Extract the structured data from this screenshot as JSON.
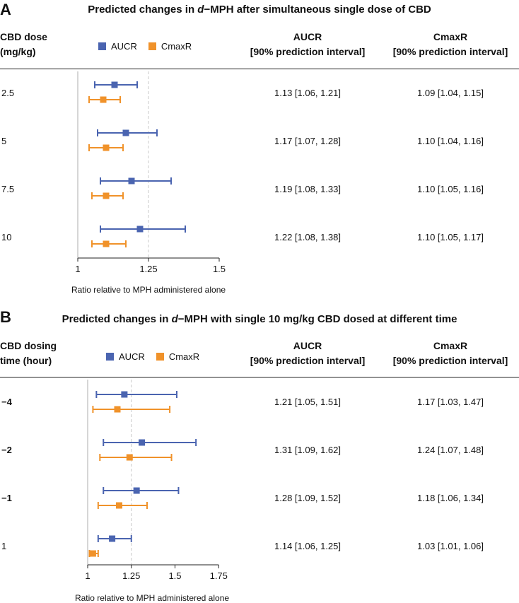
{
  "panels": [
    {
      "label": "A",
      "title_pre": "Predicted changes in ",
      "title_italic": "d",
      "title_post": "−MPH after simultaneous single dose of CBD",
      "row_header": "CBD dose\n(mg/kg)",
      "col1_header": "AUCR\n[90% prediction interval]",
      "col2_header": "CmaxR\n[90% prediction interval]",
      "rows": [
        {
          "label": "2.5",
          "aucr": "1.13 [1.06, 1.21]",
          "cmaxr": "1.09 [1.04, 1.15]"
        },
        {
          "label": "5",
          "aucr": "1.17 [1.07, 1.28]",
          "cmaxr": "1.10 [1.04, 1.16]"
        },
        {
          "label": "7.5",
          "aucr": "1.19 [1.08, 1.33]",
          "cmaxr": "1.10 [1.05, 1.16]"
        },
        {
          "label": "10",
          "aucr": "1.22 [1.08, 1.38]",
          "cmaxr": "1.10 [1.05, 1.17]"
        }
      ],
      "xaxis_label": "Ratio relative to MPH administered alone",
      "ticks": [
        "1",
        "1.25",
        "1.5"
      ]
    },
    {
      "label": "B",
      "title_pre": "Predicted changes in ",
      "title_italic": "d",
      "title_post": "−MPH with single 10 mg/kg CBD dosed at different time",
      "row_header": "CBD dosing\ntime (hour)",
      "col1_header": "AUCR\n[90% prediction interval]",
      "col2_header": "CmaxR\n[90% prediction interval]",
      "rows": [
        {
          "label": "−4",
          "aucr": "1.21 [1.05, 1.51]",
          "cmaxr": "1.17 [1.03, 1.47]"
        },
        {
          "label": "−2",
          "aucr": "1.31 [1.09, 1.62]",
          "cmaxr": "1.24 [1.07, 1.48]"
        },
        {
          "label": "−1",
          "aucr": "1.28 [1.09, 1.52]",
          "cmaxr": "1.18 [1.06, 1.34]"
        },
        {
          "label": "1",
          "aucr": "1.14 [1.06, 1.25]",
          "cmaxr": "1.03 [1.01, 1.06]"
        }
      ],
      "xaxis_label": "Ratio relative to MPH administered alone",
      "ticks": [
        "1",
        "1.25",
        "1.5",
        "1.75"
      ]
    }
  ],
  "legend": {
    "aucr": "AUCR",
    "cmaxr": "CmaxR"
  },
  "colors": {
    "aucr": "#4a64b0",
    "cmaxr": "#f0922a",
    "refline": "#c8c8c8",
    "axis": "#222222"
  },
  "chart_data": [
    {
      "type": "forest",
      "title": "Predicted changes in d−MPH after simultaneous single dose of CBD",
      "xlabel": "Ratio relative to MPH administered alone",
      "xlim": [
        1,
        1.5
      ],
      "xticks": [
        1,
        1.25,
        1.5
      ],
      "reference_line": 1.25,
      "categories": [
        "2.5",
        "5",
        "7.5",
        "10"
      ],
      "series": [
        {
          "name": "AUCR",
          "values": [
            1.13,
            1.17,
            1.19,
            1.22
          ],
          "lower": [
            1.06,
            1.07,
            1.08,
            1.08
          ],
          "upper": [
            1.21,
            1.28,
            1.33,
            1.38
          ]
        },
        {
          "name": "CmaxR",
          "values": [
            1.09,
            1.1,
            1.1,
            1.1
          ],
          "lower": [
            1.04,
            1.04,
            1.05,
            1.05
          ],
          "upper": [
            1.15,
            1.16,
            1.16,
            1.17
          ]
        }
      ]
    },
    {
      "type": "forest",
      "title": "Predicted changes in d−MPH with single 10 mg/kg CBD dosed at different time",
      "xlabel": "Ratio relative to MPH administered alone",
      "xlim": [
        1,
        1.75
      ],
      "xticks": [
        1,
        1.25,
        1.5,
        1.75
      ],
      "reference_line": 1.25,
      "categories": [
        "−4",
        "−2",
        "−1",
        "1"
      ],
      "series": [
        {
          "name": "AUCR",
          "values": [
            1.21,
            1.31,
            1.28,
            1.14
          ],
          "lower": [
            1.05,
            1.09,
            1.09,
            1.06
          ],
          "upper": [
            1.51,
            1.62,
            1.52,
            1.25
          ]
        },
        {
          "name": "CmaxR",
          "values": [
            1.17,
            1.24,
            1.18,
            1.03
          ],
          "lower": [
            1.03,
            1.07,
            1.06,
            1.01
          ],
          "upper": [
            1.47,
            1.48,
            1.34,
            1.06
          ]
        }
      ]
    }
  ]
}
